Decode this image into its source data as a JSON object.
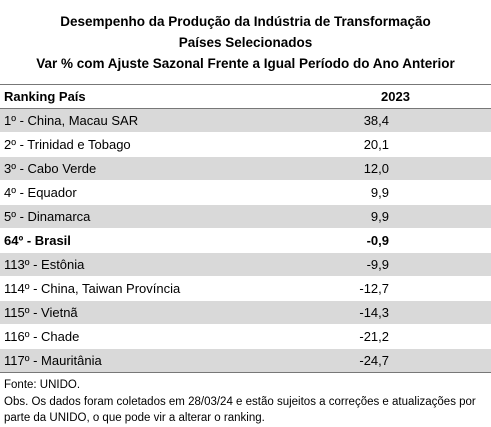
{
  "header": {
    "title": "Desempenho da Produção da Indústria de Transformação",
    "subtitle": "Países Selecionados",
    "description": "Var % com Ajuste Sazonal Frente a Igual Período do Ano Anterior"
  },
  "table": {
    "columns": [
      "Ranking País",
      "2023"
    ],
    "rows": [
      [
        "1º - China, Macau SAR",
        "38,4"
      ],
      [
        "2º - Trinidad e Tobago",
        "20,1"
      ],
      [
        "3º - Cabo Verde",
        "12,0"
      ],
      [
        "4º - Equador",
        "9,9"
      ],
      [
        "5º - Dinamarca",
        "9,9"
      ],
      [
        "64º - Brasil",
        "-0,9"
      ],
      [
        "113º - Estônia",
        "-9,9"
      ],
      [
        "114º - China, Taiwan Província",
        "-12,7"
      ],
      [
        "115º - Vietnã",
        "-14,3"
      ],
      [
        "116º - Chade",
        "-21,2"
      ],
      [
        "117º - Mauritânia",
        "-24,7"
      ]
    ]
  },
  "footer": {
    "source": "Fonte: UNIDO.",
    "note": "Obs. Os dados foram coletados em 28/03/24 e estão sujeitos a correções e atualizações por parte da UNIDO, o que pode vir a alterar o ranking."
  }
}
